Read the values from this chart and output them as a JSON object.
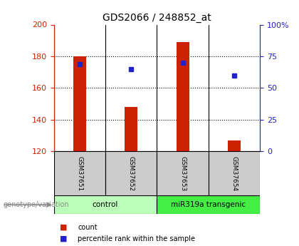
{
  "title": "GDS2066 / 248852_at",
  "samples": [
    "GSM37651",
    "GSM37652",
    "GSM37653",
    "GSM37654"
  ],
  "bar_bottom": 120,
  "bar_tops": [
    180,
    148,
    189,
    127
  ],
  "blue_y": [
    175,
    172,
    176,
    168
  ],
  "ylim_left": [
    120,
    200
  ],
  "ylim_right": [
    0,
    100
  ],
  "yticks_left": [
    120,
    140,
    160,
    180,
    200
  ],
  "yticks_right": [
    0,
    25,
    50,
    75,
    100
  ],
  "ytick_labels_right": [
    "0",
    "25",
    "50",
    "75",
    "100%"
  ],
  "bar_color": "#cc2200",
  "blue_color": "#2222cc",
  "groups": [
    {
      "label": "control",
      "samples": [
        0,
        1
      ],
      "color": "#bbffbb"
    },
    {
      "label": "miR319a transgenic",
      "samples": [
        2,
        3
      ],
      "color": "#44ee44"
    }
  ],
  "genotype_label": "genotype/variation",
  "legend_items": [
    {
      "label": "count",
      "color": "#cc2200"
    },
    {
      "label": "percentile rank within the sample",
      "color": "#2222cc"
    }
  ],
  "cell_bg": "#cccccc",
  "left_axis_color": "#cc2200",
  "right_axis_color": "#2222cc",
  "bar_width": 0.25
}
